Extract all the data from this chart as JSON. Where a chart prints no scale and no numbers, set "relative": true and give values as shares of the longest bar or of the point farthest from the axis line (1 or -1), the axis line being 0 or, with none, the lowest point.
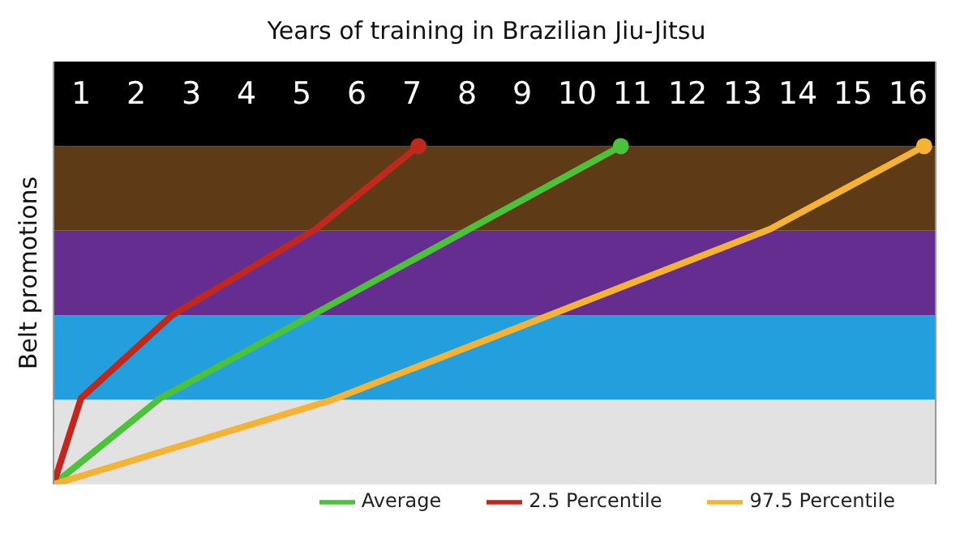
{
  "chart_data": {
    "type": "line",
    "title": "Years of training in Brazilian Jiu-Jitsu",
    "ylabel": "Belt promotions",
    "relative": true,
    "xlim": [
      0,
      16
    ],
    "xticks": [
      {
        "value": 0.5,
        "label": "1"
      },
      {
        "value": 1.5,
        "label": "2"
      },
      {
        "value": 2.5,
        "label": "3"
      },
      {
        "value": 3.5,
        "label": "4"
      },
      {
        "value": 4.5,
        "label": "5"
      },
      {
        "value": 5.5,
        "label": "6"
      },
      {
        "value": 6.5,
        "label": "7"
      },
      {
        "value": 7.5,
        "label": "8"
      },
      {
        "value": 8.5,
        "label": "9"
      },
      {
        "value": 9.5,
        "label": "10"
      },
      {
        "value": 10.5,
        "label": "11"
      },
      {
        "value": 11.5,
        "label": "12"
      },
      {
        "value": 12.5,
        "label": "13"
      },
      {
        "value": 13.5,
        "label": "14"
      },
      {
        "value": 14.5,
        "label": "15"
      },
      {
        "value": 15.5,
        "label": "16"
      }
    ],
    "series": [
      {
        "name": "Average",
        "color": "#4cc13a",
        "x": [
          0,
          1.94,
          10.29
        ],
        "values": [
          0,
          0.255,
          1
        ]
      },
      {
        "name": "2.5 Percentile",
        "color": "#c0281e",
        "x": [
          0,
          0.5,
          2.15,
          4.76,
          6.62
        ],
        "values": [
          0,
          0.255,
          0.5,
          0.755,
          1
        ]
      },
      {
        "name": "97.5 Percentile",
        "color": "#f5b335",
        "x": [
          0,
          5.06,
          13.0,
          15.79
        ],
        "values": [
          0,
          0.25,
          0.755,
          1
        ]
      }
    ],
    "bands": [
      {
        "axis": "y",
        "from": 0,
        "to": 0.25,
        "color": "#e2e2e2"
      },
      {
        "axis": "y",
        "from": 0.25,
        "to": 0.5,
        "color": "#229fdc"
      },
      {
        "axis": "y",
        "from": 0.5,
        "to": 0.75,
        "color": "#662d91"
      },
      {
        "axis": "y",
        "from": 0.75,
        "to": 1,
        "color": "#5e3a17"
      },
      {
        "axis": "y",
        "from": 1,
        "to": 1.25,
        "color": "#000000"
      }
    ],
    "legend": "bottom right"
  }
}
